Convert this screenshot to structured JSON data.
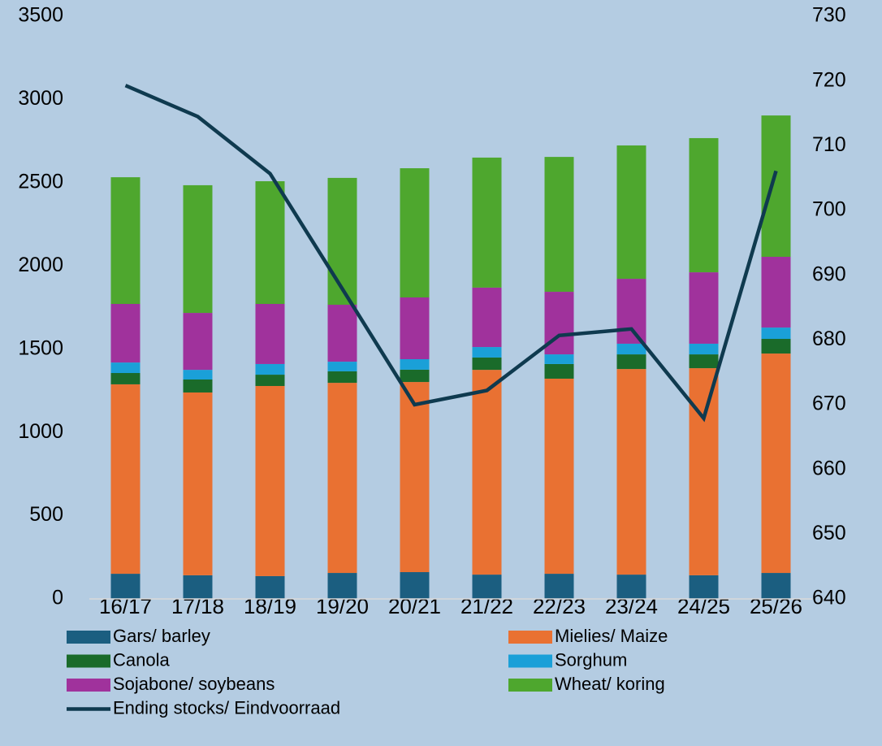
{
  "chart_data": {
    "type": "bar",
    "stacked": true,
    "categories": [
      "16/17",
      "17/18",
      "18/19",
      "19/20",
      "20/21",
      "21/22",
      "22/23",
      "23/24",
      "24/25",
      "25/26"
    ],
    "series": [
      {
        "name": "Gars/ barley",
        "color": "#1b5e80",
        "values": [
          151,
          142,
          137,
          156,
          161,
          146,
          151,
          146,
          142,
          156
        ]
      },
      {
        "name": "Mielies/ Maize",
        "color": "#e97132",
        "values": [
          1138,
          1098,
          1142,
          1142,
          1142,
          1230,
          1172,
          1235,
          1244,
          1318
        ]
      },
      {
        "name": "Canola",
        "color": "#1a6b2a",
        "values": [
          68,
          78,
          68,
          69,
          74,
          74,
          88,
          88,
          83,
          88
        ]
      },
      {
        "name": "Sorghum",
        "color": "#1aa0d8",
        "values": [
          63,
          58,
          64,
          58,
          63,
          63,
          58,
          64,
          64,
          68
        ]
      },
      {
        "name": "Sojabone/ soybeans",
        "color": "#a0329c",
        "values": [
          352,
          342,
          361,
          342,
          371,
          357,
          376,
          390,
          429,
          425
        ]
      },
      {
        "name": "Wheat/ koring",
        "color": "#4ea72e",
        "values": [
          761,
          767,
          737,
          762,
          776,
          781,
          810,
          801,
          806,
          849
        ]
      },
      {
        "name": "Ending stocks/ Eindvoorraad",
        "color": "#0f3a4f",
        "type": "line",
        "axis": "y2",
        "values": [
          719.3,
          714.5,
          705.7,
          687.9,
          670,
          672.2,
          680.7,
          681.7,
          667.9,
          706.1
        ]
      }
    ],
    "ylim": [
      0,
      3500
    ],
    "yticks": [
      0,
      500,
      1000,
      1500,
      2000,
      2500,
      3000,
      3500
    ],
    "y2lim": [
      640,
      730
    ],
    "y2ticks": [
      640,
      650,
      660,
      670,
      680,
      690,
      700,
      710,
      720,
      730
    ],
    "grid": false
  }
}
